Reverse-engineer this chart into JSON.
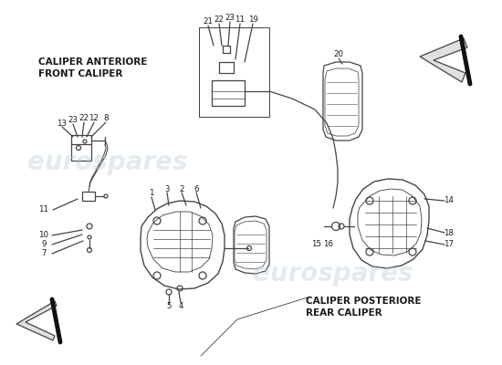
{
  "background_color": "#ffffff",
  "watermark_text": "eurospares",
  "watermark_color": "#b8ccd8",
  "watermark_alpha": 0.38,
  "label_front_it": "CALIPER ANTERIORE",
  "label_front_en": "FRONT CALIPER",
  "label_rear_it": "CALIPER POSTERIORE",
  "label_rear_en": "REAR CALIPER",
  "label_color": "#1a1a1a",
  "label_fontsize": 7.0,
  "line_color": "#444444",
  "line_width": 0.9,
  "number_fontsize": 6.2
}
